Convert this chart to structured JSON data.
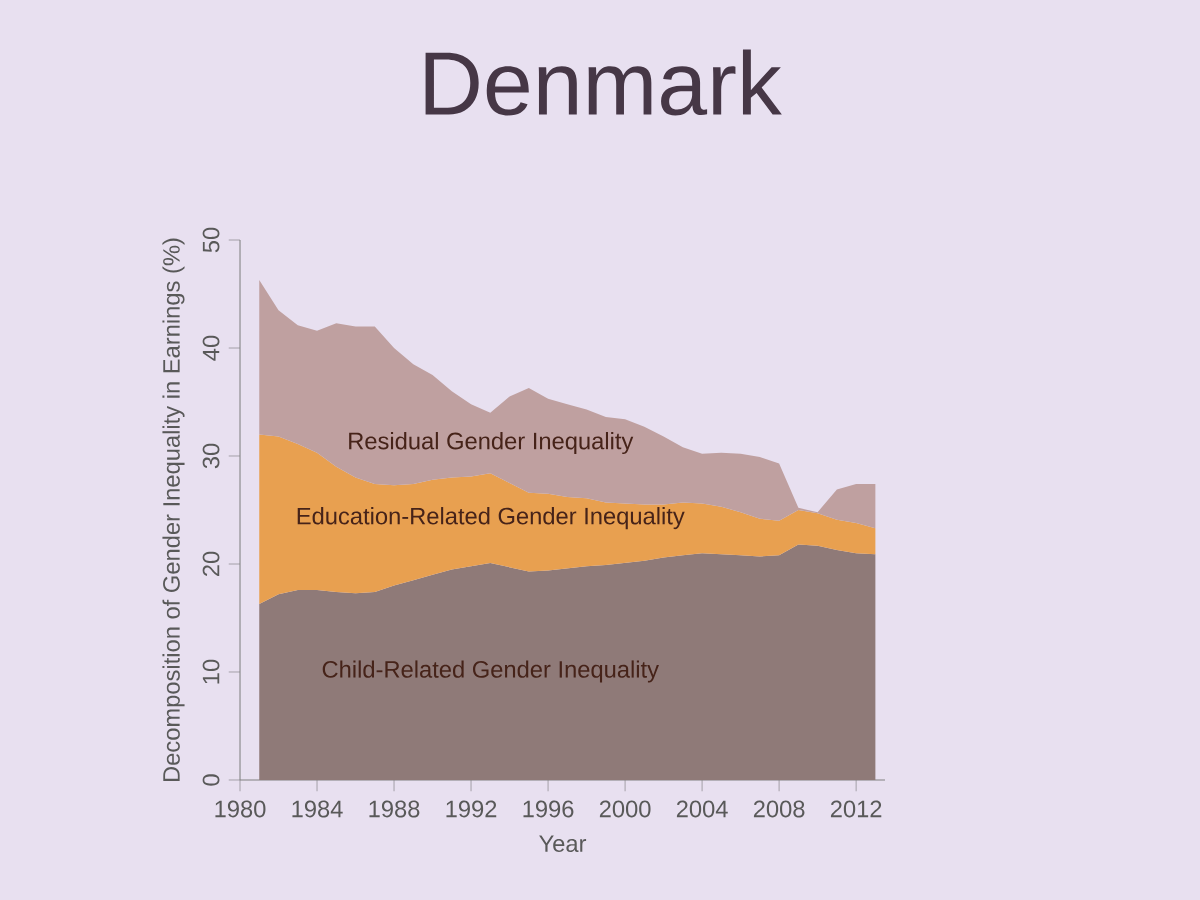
{
  "chart_data": {
    "type": "area",
    "title": "Denmark",
    "xlabel": "Year",
    "ylabel": "Decomposition of Gender Inequality in Earnings (%)",
    "x": [
      1981,
      1982,
      1983,
      1984,
      1985,
      1986,
      1987,
      1988,
      1989,
      1990,
      1991,
      1992,
      1993,
      1994,
      1995,
      1996,
      1997,
      1998,
      1999,
      2000,
      2001,
      2002,
      2003,
      2004,
      2005,
      2006,
      2007,
      2008,
      2009,
      2010,
      2011,
      2012,
      2013
    ],
    "stacked": true,
    "series": [
      {
        "name": "Child-Related Gender Inequality",
        "color": "#8f7a78",
        "values": [
          16.3,
          17.2,
          17.6,
          17.6,
          17.4,
          17.3,
          17.4,
          18.0,
          18.5,
          19.0,
          19.5,
          19.8,
          20.1,
          19.7,
          19.3,
          19.4,
          19.6,
          19.8,
          19.9,
          20.1,
          20.3,
          20.6,
          20.8,
          21.0,
          20.9,
          20.8,
          20.7,
          20.8,
          21.8,
          21.7,
          21.3,
          21.0,
          20.9
        ]
      },
      {
        "name": "Education-Related Gender Inequality",
        "color": "#e8a050",
        "values": [
          15.7,
          14.6,
          13.5,
          12.7,
          11.6,
          10.7,
          10.0,
          9.3,
          8.9,
          8.8,
          8.5,
          8.3,
          8.3,
          7.8,
          7.3,
          7.1,
          6.6,
          6.3,
          5.8,
          5.5,
          5.2,
          4.9,
          4.9,
          4.6,
          4.4,
          4.0,
          3.5,
          3.2,
          3.2,
          3.0,
          2.8,
          2.8,
          2.4
        ]
      },
      {
        "name": "Residual Gender Inequality",
        "color": "#bfa0a0",
        "values": [
          14.3,
          11.7,
          11.0,
          11.3,
          13.3,
          14.0,
          14.6,
          12.7,
          11.1,
          9.7,
          8.0,
          6.7,
          5.6,
          8.0,
          9.7,
          8.8,
          8.6,
          8.2,
          7.9,
          7.8,
          7.2,
          6.3,
          5.1,
          4.6,
          5.0,
          5.4,
          5.7,
          5.3,
          0.2,
          0.1,
          2.8,
          3.6,
          4.1
        ]
      }
    ],
    "xlim": [
      1980,
      2013.5
    ],
    "ylim": [
      0,
      50
    ],
    "xticks": [
      1980,
      1984,
      1988,
      1992,
      1996,
      2000,
      2004,
      2008,
      2012
    ],
    "yticks": [
      0,
      10,
      20,
      30,
      40,
      50
    ],
    "grid": false,
    "legend": false
  }
}
